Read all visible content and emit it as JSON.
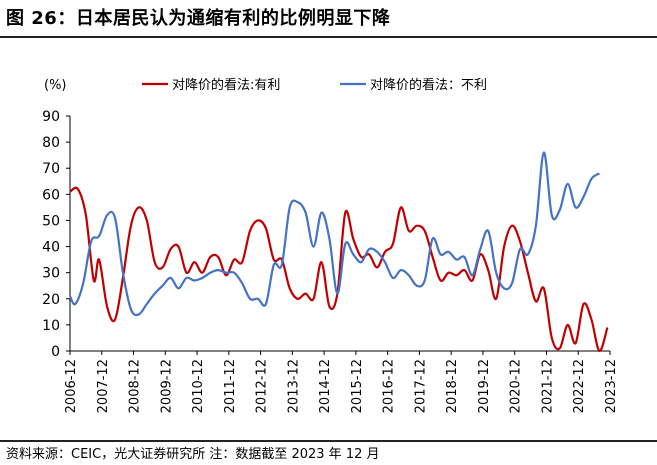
{
  "title": "图 26：日本居民认为通缩有利的比例明显下降",
  "source": "资料来源：CEIC，光大证券研究所 注：数据截至 2023 年 12 月",
  "colors": {
    "series1": "#C00000",
    "series2": "#4472C4"
  },
  "chart_data": {
    "type": "line",
    "y_unit": "(%)",
    "ylim": [
      0,
      90
    ],
    "yticks": [
      0,
      10,
      20,
      30,
      40,
      50,
      60,
      70,
      80,
      90
    ],
    "xlim": [
      2006.9167,
      2023.9167
    ],
    "xticks": [
      "2006-12",
      "2007-12",
      "2008-12",
      "2009-12",
      "2010-12",
      "2011-12",
      "2012-12",
      "2013-12",
      "2014-12",
      "2015-12",
      "2016-12",
      "2017-12",
      "2018-12",
      "2019-12",
      "2020-12",
      "2021-12",
      "2022-12",
      "2023-12"
    ],
    "grid": false,
    "legend": "top",
    "series": [
      {
        "name": "对降价的看法:有利",
        "color": "#C00000",
        "points": [
          [
            "2006-12",
            61
          ],
          [
            "2007-03",
            62
          ],
          [
            "2007-06",
            52
          ],
          [
            "2007-09",
            27
          ],
          [
            "2007-11",
            35
          ],
          [
            "2008-02",
            17
          ],
          [
            "2008-05",
            12
          ],
          [
            "2008-08",
            28
          ],
          [
            "2008-11",
            48
          ],
          [
            "2009-02",
            55
          ],
          [
            "2009-05",
            50
          ],
          [
            "2009-08",
            34
          ],
          [
            "2009-11",
            32
          ],
          [
            "2010-02",
            39
          ],
          [
            "2010-05",
            40
          ],
          [
            "2010-08",
            30
          ],
          [
            "2010-11",
            34
          ],
          [
            "2011-02",
            30
          ],
          [
            "2011-05",
            36
          ],
          [
            "2011-08",
            36
          ],
          [
            "2011-11",
            29
          ],
          [
            "2012-02",
            35
          ],
          [
            "2012-05",
            34
          ],
          [
            "2012-08",
            46
          ],
          [
            "2012-11",
            50
          ],
          [
            "2013-02",
            47
          ],
          [
            "2013-05",
            35
          ],
          [
            "2013-08",
            35
          ],
          [
            "2013-11",
            24
          ],
          [
            "2014-02",
            20
          ],
          [
            "2014-05",
            22
          ],
          [
            "2014-08",
            20
          ],
          [
            "2014-11",
            34
          ],
          [
            "2015-02",
            17
          ],
          [
            "2015-05",
            22
          ],
          [
            "2015-08",
            53
          ],
          [
            "2015-11",
            43
          ],
          [
            "2016-02",
            36
          ],
          [
            "2016-05",
            37
          ],
          [
            "2016-08",
            32
          ],
          [
            "2016-11",
            38
          ],
          [
            "2017-02",
            41
          ],
          [
            "2017-05",
            55
          ],
          [
            "2017-08",
            46
          ],
          [
            "2017-11",
            48
          ],
          [
            "2018-02",
            46
          ],
          [
            "2018-05",
            36
          ],
          [
            "2018-08",
            27
          ],
          [
            "2018-11",
            30
          ],
          [
            "2019-02",
            29
          ],
          [
            "2019-05",
            31
          ],
          [
            "2019-08",
            27
          ],
          [
            "2019-11",
            37
          ],
          [
            "2020-02",
            31
          ],
          [
            "2020-05",
            20
          ],
          [
            "2020-08",
            40
          ],
          [
            "2020-11",
            48
          ],
          [
            "2021-02",
            42
          ],
          [
            "2021-05",
            30
          ],
          [
            "2021-08",
            19
          ],
          [
            "2021-11",
            24
          ],
          [
            "2022-02",
            5
          ],
          [
            "2022-05",
            1
          ],
          [
            "2022-08",
            10
          ],
          [
            "2022-11",
            3
          ],
          [
            "2023-02",
            18
          ],
          [
            "2023-05",
            12
          ],
          [
            "2023-08",
            0
          ],
          [
            "2023-11",
            9
          ]
        ]
      },
      {
        "name": "对降价的看法：不利",
        "color": "#4472C4",
        "points": [
          [
            "2006-12",
            21
          ],
          [
            "2007-02",
            18
          ],
          [
            "2007-05",
            26
          ],
          [
            "2007-08",
            42
          ],
          [
            "2007-11",
            44
          ],
          [
            "2008-02",
            52
          ],
          [
            "2008-05",
            51
          ],
          [
            "2008-08",
            30
          ],
          [
            "2008-11",
            16
          ],
          [
            "2009-02",
            14
          ],
          [
            "2009-05",
            18
          ],
          [
            "2009-08",
            22
          ],
          [
            "2009-11",
            25
          ],
          [
            "2010-02",
            28
          ],
          [
            "2010-05",
            24
          ],
          [
            "2010-08",
            28
          ],
          [
            "2010-11",
            27
          ],
          [
            "2011-02",
            28
          ],
          [
            "2011-05",
            30
          ],
          [
            "2011-08",
            31
          ],
          [
            "2011-11",
            30
          ],
          [
            "2012-02",
            30
          ],
          [
            "2012-05",
            26
          ],
          [
            "2012-08",
            20
          ],
          [
            "2012-11",
            20
          ],
          [
            "2013-02",
            18
          ],
          [
            "2013-05",
            33
          ],
          [
            "2013-08",
            33
          ],
          [
            "2013-11",
            55
          ],
          [
            "2014-02",
            57
          ],
          [
            "2014-05",
            53
          ],
          [
            "2014-08",
            40
          ],
          [
            "2014-11",
            53
          ],
          [
            "2015-02",
            43
          ],
          [
            "2015-05",
            22
          ],
          [
            "2015-08",
            41
          ],
          [
            "2015-11",
            37
          ],
          [
            "2016-02",
            34
          ],
          [
            "2016-05",
            39
          ],
          [
            "2016-08",
            38
          ],
          [
            "2016-11",
            34
          ],
          [
            "2017-02",
            28
          ],
          [
            "2017-05",
            31
          ],
          [
            "2017-08",
            29
          ],
          [
            "2017-11",
            25
          ],
          [
            "2018-02",
            27
          ],
          [
            "2018-05",
            43
          ],
          [
            "2018-08",
            37
          ],
          [
            "2018-11",
            38
          ],
          [
            "2019-02",
            35
          ],
          [
            "2019-05",
            36
          ],
          [
            "2019-08",
            29
          ],
          [
            "2019-11",
            39
          ],
          [
            "2020-02",
            46
          ],
          [
            "2020-05",
            30
          ],
          [
            "2020-08",
            24
          ],
          [
            "2020-11",
            26
          ],
          [
            "2021-02",
            39
          ],
          [
            "2021-05",
            37
          ],
          [
            "2021-08",
            48
          ],
          [
            "2021-11",
            76
          ],
          [
            "2022-02",
            52
          ],
          [
            "2022-05",
            54
          ],
          [
            "2022-08",
            64
          ],
          [
            "2022-11",
            55
          ],
          [
            "2023-02",
            59
          ],
          [
            "2023-05",
            66
          ],
          [
            "2023-08",
            68
          ]
        ]
      }
    ]
  }
}
